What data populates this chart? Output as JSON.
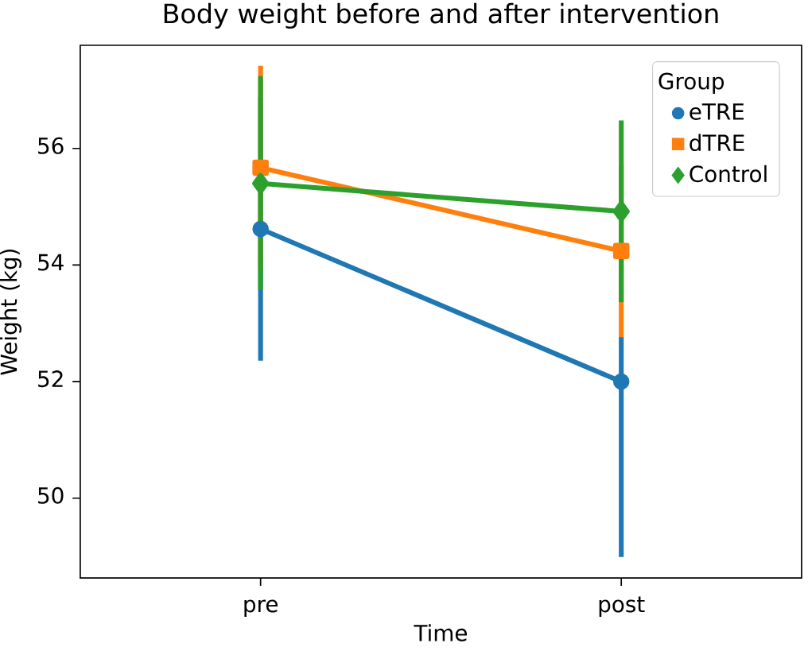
{
  "chart_data": {
    "type": "line",
    "title": "Body weight before and after intervention",
    "xlabel": "Time",
    "ylabel": "Weight (kg)",
    "legend_title": "Group",
    "categories": [
      "pre",
      "post"
    ],
    "series": [
      {
        "name": "eTRE",
        "color": "#1f77b4",
        "marker": "circle",
        "values": [
          54.62,
          52.0
        ],
        "errors": [
          [
            52.36,
            56.88
          ],
          [
            48.99,
            52.77
          ]
        ]
      },
      {
        "name": "dTRE",
        "color": "#ff7f0e",
        "marker": "square",
        "values": [
          55.67,
          54.24
        ],
        "errors": [
          [
            53.92,
            57.42
          ],
          [
            52.76,
            55.71
          ]
        ]
      },
      {
        "name": "Control",
        "color": "#2ca02c",
        "marker": "diamond",
        "values": [
          55.4,
          54.92
        ],
        "errors": [
          [
            53.57,
            57.24
          ],
          [
            53.36,
            56.48
          ]
        ]
      }
    ],
    "ylim": [
      48.63,
      57.77
    ],
    "yticks": [
      50,
      52,
      54,
      56
    ],
    "grid": false,
    "legend": "top right"
  }
}
